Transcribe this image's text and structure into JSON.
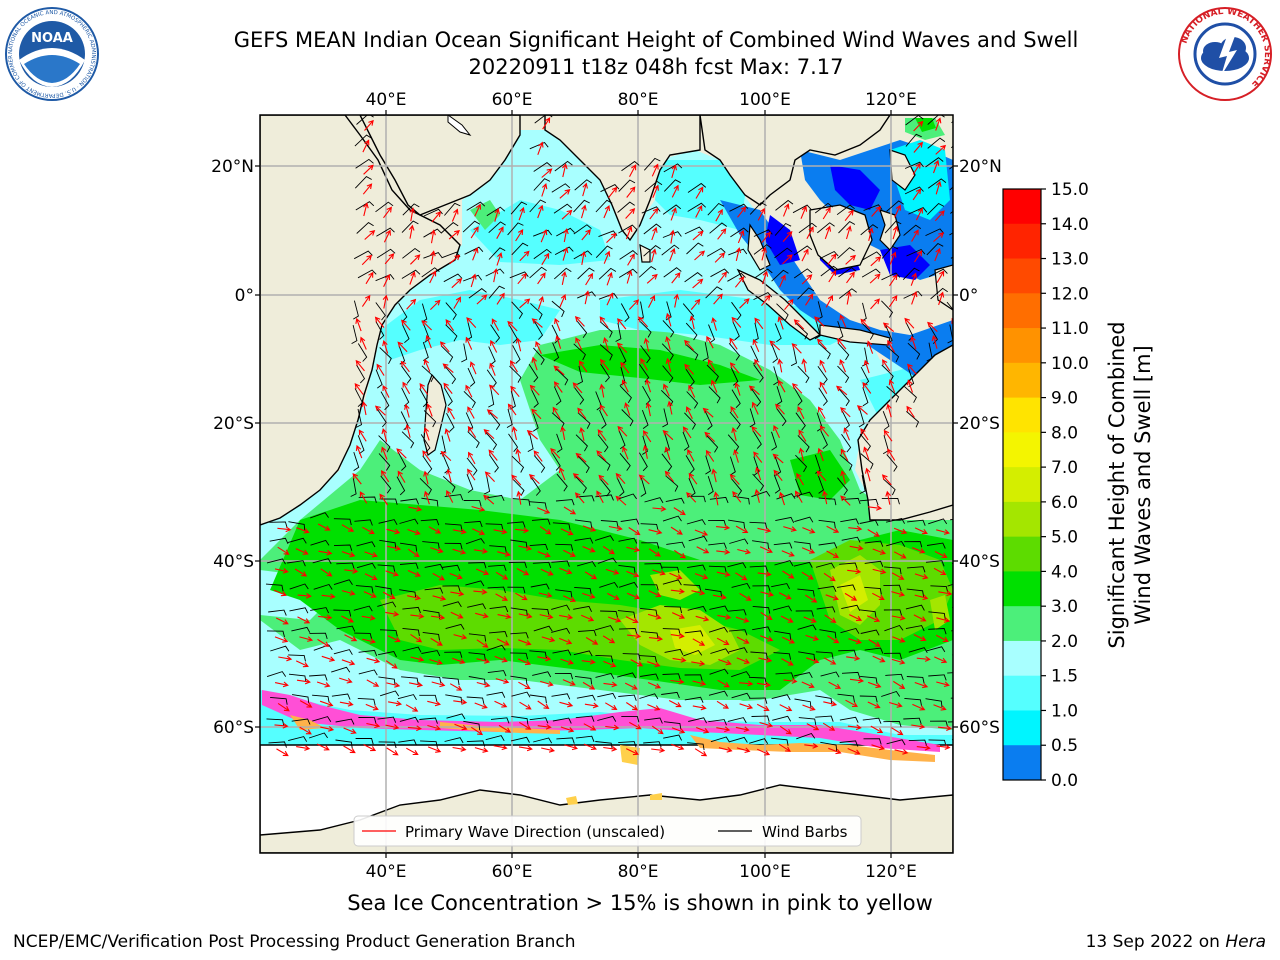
{
  "header": {
    "title_line1": "GEFS MEAN Indian Ocean Significant Height of Combined Wind Waves and Swell",
    "title_line2": "20220911 t18z 048h fcst   Max: 7.17"
  },
  "logos": {
    "left": {
      "name": "NOAA",
      "ring_text": "NATIONAL OCEANIC AND ATMOSPHERIC ADMINISTRATION · U.S. DEPARTMENT OF COMMERCE",
      "color": "#1f5aa6"
    },
    "right": {
      "name": "National Weather Service",
      "ring_text": "NATIONAL WEATHER SERVICE",
      "color": "#d61f26"
    }
  },
  "map": {
    "lon_ticks_top": [
      "40°E",
      "60°E",
      "80°E",
      "100°E",
      "120°E"
    ],
    "lon_ticks_bottom": [
      "40°E",
      "60°E",
      "80°E",
      "100°E",
      "120°E"
    ],
    "lat_ticks_left": [
      "20°N",
      "0°",
      "20°S",
      "40°S",
      "60°S"
    ],
    "lat_ticks_right": [
      "20°N",
      "0°",
      "20°S",
      "40°S",
      "60°S"
    ],
    "land_color": "#efedda",
    "grid_color": "#b0b0b0",
    "legend": {
      "wave_direction": "Primary Wave Direction (unscaled)",
      "wind_barbs": "Wind Barbs"
    }
  },
  "colorbar": {
    "label_line1": "Significant Height of Combined",
    "label_line2": "Wind Waves and Swell [m]",
    "ticks": [
      "15.0",
      "14.0",
      "13.0",
      "12.0",
      "11.0",
      "10.0",
      "9.0",
      "8.0",
      "7.0",
      "6.0",
      "5.0",
      "4.0",
      "3.0",
      "2.0",
      "1.5",
      "1.0",
      "0.5",
      "0.0"
    ],
    "colors": [
      "#ff0000",
      "#ff2400",
      "#ff4a00",
      "#ff6e00",
      "#ff9200",
      "#ffb600",
      "#ffe400",
      "#f4f500",
      "#d4ee00",
      "#a4e600",
      "#5ddc00",
      "#00e000",
      "#4cef7a",
      "#a8ffff",
      "#55ffff",
      "#00f5ff",
      "#0a7df0",
      "#0000ff"
    ]
  },
  "caption": "Sea Ice Concentration > 15% is shown in pink to yellow",
  "footer": {
    "left": "NCEP/EMC/Verification Post Processing Product Generation Branch",
    "right_date": "13 Sep 2022 on ",
    "right_host": "Hera"
  }
}
